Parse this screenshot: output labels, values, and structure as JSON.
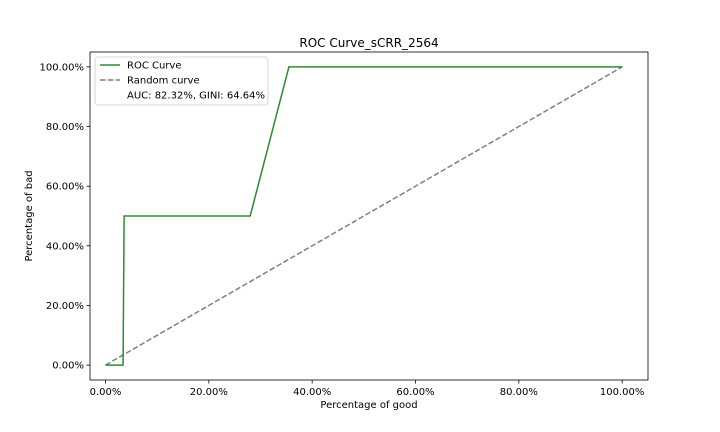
{
  "chart_data": {
    "type": "line",
    "title": "ROC Curve_sCRR_2564",
    "xlabel": "Percentage of good",
    "ylabel": "Percentage of bad",
    "xlim": [
      -0.03,
      1.05
    ],
    "ylim": [
      -0.05,
      1.05
    ],
    "xticks": [
      0,
      0.2,
      0.4,
      0.6,
      0.8,
      1.0
    ],
    "xtick_labels": [
      "0.00%",
      "20.00%",
      "40.00%",
      "60.00%",
      "80.00%",
      "100.00%"
    ],
    "yticks": [
      0,
      0.2,
      0.4,
      0.6,
      0.8,
      1.0
    ],
    "ytick_labels": [
      "0.00%",
      "20.00%",
      "40.00%",
      "60.00%",
      "80.00%",
      "100.00%"
    ],
    "grid": false,
    "legend_position": "top-left",
    "series": [
      {
        "name": "ROC Curve",
        "style": "solid",
        "color": "#2e8b2e",
        "x": [
          0.0,
          0.034,
          0.036,
          0.28,
          0.355,
          1.0
        ],
        "y": [
          0.0,
          0.0,
          0.5,
          0.5,
          1.0,
          1.0
        ]
      },
      {
        "name": "Random curve",
        "style": "dashed",
        "color": "#808080",
        "x": [
          0.0,
          1.0
        ],
        "y": [
          0.0,
          1.0
        ]
      }
    ],
    "legend_entries": [
      {
        "label": "ROC Curve",
        "style": "solid",
        "color": "#2e8b2e"
      },
      {
        "label": "Random curve",
        "style": "dashed",
        "color": "#808080"
      },
      {
        "label": "AUC: 82.32%, GINI: 64.64%",
        "style": "none",
        "color": ""
      }
    ]
  }
}
